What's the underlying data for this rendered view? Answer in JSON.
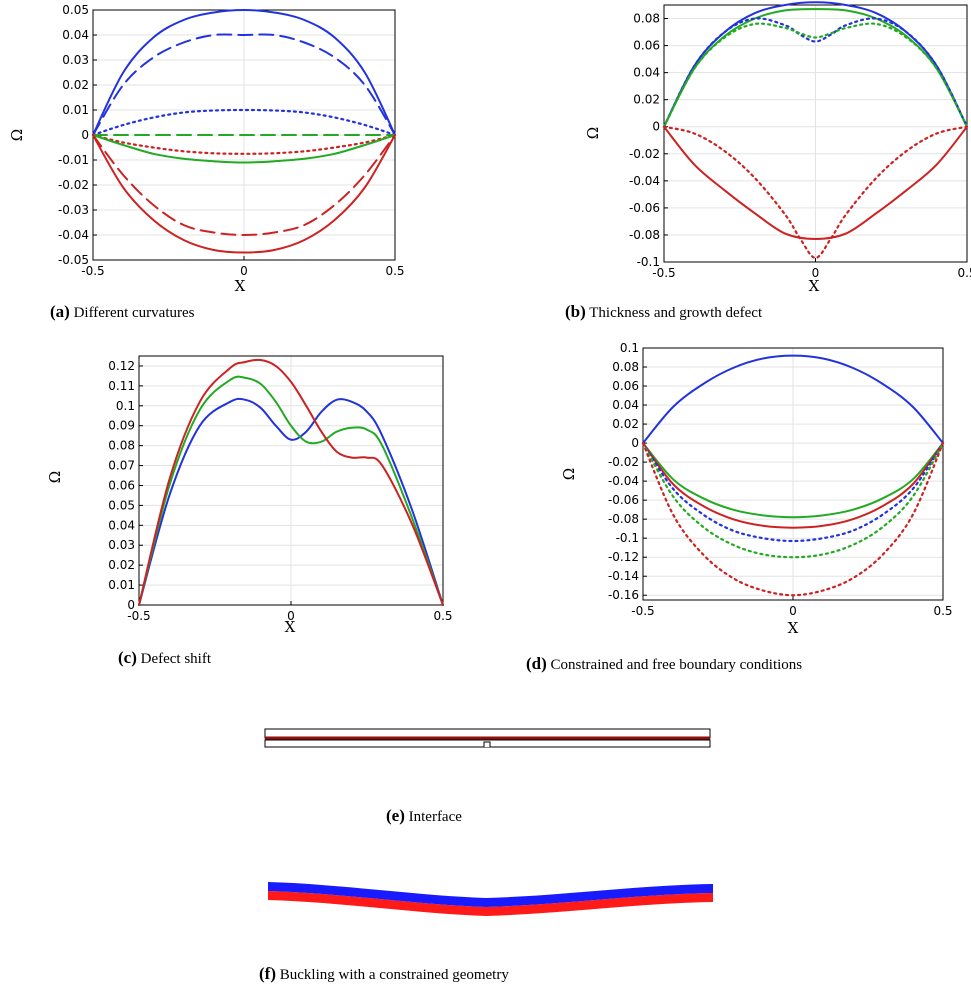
{
  "captions": {
    "a": {
      "letter": "(a)",
      "text": "Different curvatures"
    },
    "b": {
      "letter": "(b)",
      "text": "Thickness and growth defect"
    },
    "c": {
      "letter": "(c)",
      "text": "Defect shift"
    },
    "d": {
      "letter": "(d)",
      "text": "Constrained and free boundary conditions"
    },
    "e": {
      "letter": "(e)",
      "text": "Interface"
    },
    "f": {
      "letter": "(f)",
      "text": "Buckling with a constrained geometry"
    }
  },
  "colors": {
    "blue": "#2233dd",
    "green": "#22aa22",
    "red": "#cc2222",
    "layer_red": "#ff1a1a",
    "layer_blue": "#1a1aff",
    "interface_line": "#8b1010"
  },
  "chart_data": [
    {
      "id": "a",
      "type": "line",
      "xlabel": "X",
      "ylabel": "Ω",
      "xlim": [
        -0.5,
        0.5
      ],
      "ylim": [
        -0.05,
        0.05
      ],
      "grid": true,
      "xticks": [
        "-0.5",
        "0",
        "0.5"
      ],
      "yticks": [
        "0.05",
        "0.04",
        "0.03",
        "0.02",
        "0.01",
        "0",
        "-0.01",
        "-0.02",
        "-0.03",
        "-0.04",
        "-0.05"
      ],
      "series": [
        {
          "color": "blue",
          "style": "solid",
          "x": [
            -0.5,
            -0.4,
            -0.3,
            -0.2,
            -0.1,
            0,
            0.1,
            0.2,
            0.3,
            0.4,
            0.5
          ],
          "y": [
            0,
            0.025,
            0.039,
            0.046,
            0.049,
            0.05,
            0.049,
            0.046,
            0.039,
            0.025,
            0
          ]
        },
        {
          "color": "blue",
          "style": "dashed",
          "x": [
            -0.5,
            -0.4,
            -0.3,
            -0.2,
            -0.1,
            0,
            0.1,
            0.2,
            0.3,
            0.4,
            0.5
          ],
          "y": [
            0,
            0.02,
            0.031,
            0.037,
            0.04,
            0.04,
            0.04,
            0.037,
            0.031,
            0.02,
            0
          ]
        },
        {
          "color": "blue",
          "style": "dotted",
          "x": [
            -0.5,
            -0.4,
            -0.3,
            -0.2,
            -0.1,
            0,
            0.1,
            0.2,
            0.3,
            0.4,
            0.5
          ],
          "y": [
            0,
            0.004,
            0.007,
            0.009,
            0.0098,
            0.01,
            0.0098,
            0.009,
            0.007,
            0.004,
            0
          ]
        },
        {
          "color": "green",
          "style": "dashed",
          "x": [
            -0.5,
            0.5
          ],
          "y": [
            0,
            0
          ]
        },
        {
          "color": "red",
          "style": "dotted",
          "x": [
            -0.5,
            -0.4,
            -0.3,
            -0.2,
            -0.1,
            0,
            0.1,
            0.2,
            0.3,
            0.4,
            0.5
          ],
          "y": [
            0,
            -0.003,
            -0.005,
            -0.0065,
            -0.0073,
            -0.0075,
            -0.0073,
            -0.0065,
            -0.005,
            -0.003,
            0
          ]
        },
        {
          "color": "green",
          "style": "solid",
          "x": [
            -0.5,
            -0.4,
            -0.3,
            -0.2,
            -0.1,
            0,
            0.1,
            0.2,
            0.3,
            0.4,
            0.5
          ],
          "y": [
            0,
            -0.004,
            -0.0075,
            -0.0095,
            -0.0105,
            -0.011,
            -0.0105,
            -0.0095,
            -0.0075,
            -0.004,
            0
          ]
        },
        {
          "color": "red",
          "style": "dashed",
          "x": [
            -0.5,
            -0.4,
            -0.3,
            -0.2,
            -0.1,
            0,
            0.1,
            0.2,
            0.3,
            0.4,
            0.5
          ],
          "y": [
            0,
            -0.016,
            -0.028,
            -0.036,
            -0.039,
            -0.04,
            -0.039,
            -0.036,
            -0.028,
            -0.016,
            0
          ]
        },
        {
          "color": "red",
          "style": "solid",
          "x": [
            -0.5,
            -0.4,
            -0.3,
            -0.2,
            -0.1,
            0,
            0.1,
            0.2,
            0.3,
            0.4,
            0.5
          ],
          "y": [
            0,
            -0.021,
            -0.034,
            -0.042,
            -0.046,
            -0.047,
            -0.046,
            -0.042,
            -0.034,
            -0.021,
            0
          ]
        }
      ]
    },
    {
      "id": "b",
      "type": "line",
      "xlabel": "X",
      "ylabel": "Ω",
      "xlim": [
        -0.5,
        0.5
      ],
      "ylim": [
        -0.1,
        0.09
      ],
      "grid": true,
      "xticks": [
        "-0.5",
        "0",
        "0.5"
      ],
      "yticks": [
        "0.08",
        "0.06",
        "0.04",
        "0.02",
        "0",
        "-0.02",
        "-0.04",
        "-0.06",
        "-0.08",
        "-0.1"
      ],
      "series": [
        {
          "color": "blue",
          "style": "solid",
          "x": [
            -0.5,
            -0.4,
            -0.3,
            -0.2,
            -0.1,
            0,
            0.1,
            0.2,
            0.3,
            0.4,
            0.5
          ],
          "y": [
            0,
            0.045,
            0.07,
            0.084,
            0.09,
            0.092,
            0.09,
            0.084,
            0.07,
            0.045,
            0
          ]
        },
        {
          "color": "green",
          "style": "solid",
          "x": [
            -0.5,
            -0.4,
            -0.3,
            -0.2,
            -0.1,
            0,
            0.1,
            0.2,
            0.3,
            0.4,
            0.5
          ],
          "y": [
            0,
            0.043,
            0.067,
            0.08,
            0.086,
            0.087,
            0.086,
            0.08,
            0.067,
            0.043,
            0
          ]
        },
        {
          "color": "blue",
          "style": "dotted",
          "x": [
            -0.5,
            -0.4,
            -0.3,
            -0.2,
            -0.1,
            -0.05,
            0,
            0.05,
            0.1,
            0.2,
            0.3,
            0.4,
            0.5
          ],
          "y": [
            0,
            0.045,
            0.07,
            0.08,
            0.075,
            0.068,
            0.063,
            0.068,
            0.075,
            0.08,
            0.07,
            0.045,
            0
          ]
        },
        {
          "color": "green",
          "style": "dotted",
          "x": [
            -0.5,
            -0.4,
            -0.3,
            -0.2,
            -0.1,
            -0.05,
            0,
            0.05,
            0.1,
            0.2,
            0.3,
            0.4,
            0.5
          ],
          "y": [
            0,
            0.043,
            0.066,
            0.076,
            0.073,
            0.069,
            0.066,
            0.069,
            0.073,
            0.076,
            0.066,
            0.043,
            0
          ]
        },
        {
          "color": "red",
          "style": "solid",
          "x": [
            -0.5,
            -0.4,
            -0.3,
            -0.2,
            -0.1,
            0,
            0.1,
            0.2,
            0.3,
            0.4,
            0.5
          ],
          "y": [
            0,
            -0.028,
            -0.047,
            -0.064,
            -0.079,
            -0.083,
            -0.079,
            -0.064,
            -0.047,
            -0.028,
            0
          ]
        },
        {
          "color": "red",
          "style": "dotted",
          "x": [
            -0.5,
            -0.4,
            -0.3,
            -0.2,
            -0.1,
            -0.05,
            0,
            0.05,
            0.1,
            0.2,
            0.3,
            0.4,
            0.5
          ],
          "y": [
            0,
            -0.005,
            -0.018,
            -0.038,
            -0.065,
            -0.083,
            -0.097,
            -0.083,
            -0.065,
            -0.038,
            -0.018,
            -0.005,
            0
          ]
        }
      ]
    },
    {
      "id": "c",
      "type": "line",
      "xlabel": "X",
      "ylabel": "Ω",
      "xlim": [
        -0.5,
        0.5
      ],
      "ylim": [
        0,
        0.125
      ],
      "grid": true,
      "xticks": [
        "-0.5",
        "0",
        "0.5"
      ],
      "yticks": [
        "0.12",
        "0.11",
        "0.1",
        "0.09",
        "0.08",
        "0.07",
        "0.06",
        "0.05",
        "0.04",
        "0.03",
        "0.02",
        "0.01",
        "0"
      ],
      "series": [
        {
          "color": "blue",
          "style": "solid",
          "x": [
            -0.5,
            -0.4,
            -0.3,
            -0.2,
            -0.15,
            -0.1,
            -0.05,
            0,
            0.05,
            0.1,
            0.15,
            0.2,
            0.25,
            0.3,
            0.4,
            0.5
          ],
          "y": [
            0,
            0.055,
            0.09,
            0.102,
            0.103,
            0.099,
            0.09,
            0.083,
            0.087,
            0.097,
            0.103,
            0.102,
            0.097,
            0.085,
            0.047,
            0
          ]
        },
        {
          "color": "green",
          "style": "solid",
          "x": [
            -0.5,
            -0.4,
            -0.3,
            -0.2,
            -0.15,
            -0.1,
            -0.05,
            0,
            0.05,
            0.1,
            0.15,
            0.2,
            0.25,
            0.3,
            0.4,
            0.5
          ],
          "y": [
            0,
            0.06,
            0.098,
            0.113,
            0.114,
            0.111,
            0.102,
            0.09,
            0.082,
            0.082,
            0.087,
            0.089,
            0.088,
            0.08,
            0.043,
            0
          ]
        },
        {
          "color": "red",
          "style": "solid",
          "x": [
            -0.5,
            -0.4,
            -0.3,
            -0.2,
            -0.15,
            -0.1,
            -0.05,
            0,
            0.05,
            0.1,
            0.15,
            0.2,
            0.25,
            0.3,
            0.4,
            0.5
          ],
          "y": [
            0,
            0.063,
            0.102,
            0.119,
            0.122,
            0.123,
            0.12,
            0.112,
            0.1,
            0.087,
            0.077,
            0.074,
            0.074,
            0.07,
            0.04,
            0
          ]
        }
      ]
    },
    {
      "id": "d",
      "type": "line",
      "xlabel": "X",
      "ylabel": "Ω",
      "xlim": [
        -0.5,
        0.5
      ],
      "ylim": [
        -0.165,
        0.1
      ],
      "grid": true,
      "xticks": [
        "-0.5",
        "0",
        "0.5"
      ],
      "yticks": [
        "0.1",
        "0.08",
        "0.06",
        "0.04",
        "0.02",
        "0",
        "-0.02",
        "-0.04",
        "-0.06",
        "-0.08",
        "-0.1",
        "-0.12",
        "-0.14",
        "-0.16"
      ],
      "series": [
        {
          "color": "blue",
          "style": "solid",
          "x": [
            -0.5,
            -0.4,
            -0.3,
            -0.2,
            -0.1,
            0,
            0.1,
            0.2,
            0.3,
            0.4,
            0.5
          ],
          "y": [
            0,
            0.038,
            0.062,
            0.079,
            0.089,
            0.092,
            0.089,
            0.079,
            0.062,
            0.038,
            0
          ]
        },
        {
          "color": "green",
          "style": "solid",
          "x": [
            -0.5,
            -0.4,
            -0.3,
            -0.2,
            -0.1,
            0,
            0.1,
            0.2,
            0.3,
            0.4,
            0.5
          ],
          "y": [
            0,
            -0.038,
            -0.058,
            -0.07,
            -0.076,
            -0.078,
            -0.076,
            -0.07,
            -0.058,
            -0.038,
            0
          ]
        },
        {
          "color": "red",
          "style": "solid",
          "x": [
            -0.5,
            -0.4,
            -0.3,
            -0.2,
            -0.1,
            0,
            0.1,
            0.2,
            0.3,
            0.4,
            0.5
          ],
          "y": [
            0,
            -0.043,
            -0.066,
            -0.08,
            -0.087,
            -0.089,
            -0.087,
            -0.08,
            -0.066,
            -0.043,
            0
          ]
        },
        {
          "color": "blue",
          "style": "dotted",
          "x": [
            -0.5,
            -0.4,
            -0.3,
            -0.2,
            -0.1,
            0,
            0.1,
            0.2,
            0.3,
            0.4,
            0.5
          ],
          "y": [
            0,
            -0.048,
            -0.075,
            -0.092,
            -0.1,
            -0.103,
            -0.1,
            -0.092,
            -0.075,
            -0.048,
            0
          ]
        },
        {
          "color": "green",
          "style": "dotted",
          "x": [
            -0.5,
            -0.4,
            -0.3,
            -0.2,
            -0.1,
            0,
            0.1,
            0.2,
            0.3,
            0.4,
            0.5
          ],
          "y": [
            0,
            -0.056,
            -0.088,
            -0.107,
            -0.117,
            -0.12,
            -0.117,
            -0.107,
            -0.088,
            -0.056,
            0
          ]
        },
        {
          "color": "red",
          "style": "dotted",
          "x": [
            -0.5,
            -0.4,
            -0.3,
            -0.2,
            -0.1,
            0,
            0.1,
            0.2,
            0.3,
            0.4,
            0.5
          ],
          "y": [
            0,
            -0.075,
            -0.117,
            -0.142,
            -0.155,
            -0.16,
            -0.155,
            -0.142,
            -0.117,
            -0.075,
            0
          ]
        }
      ]
    }
  ]
}
